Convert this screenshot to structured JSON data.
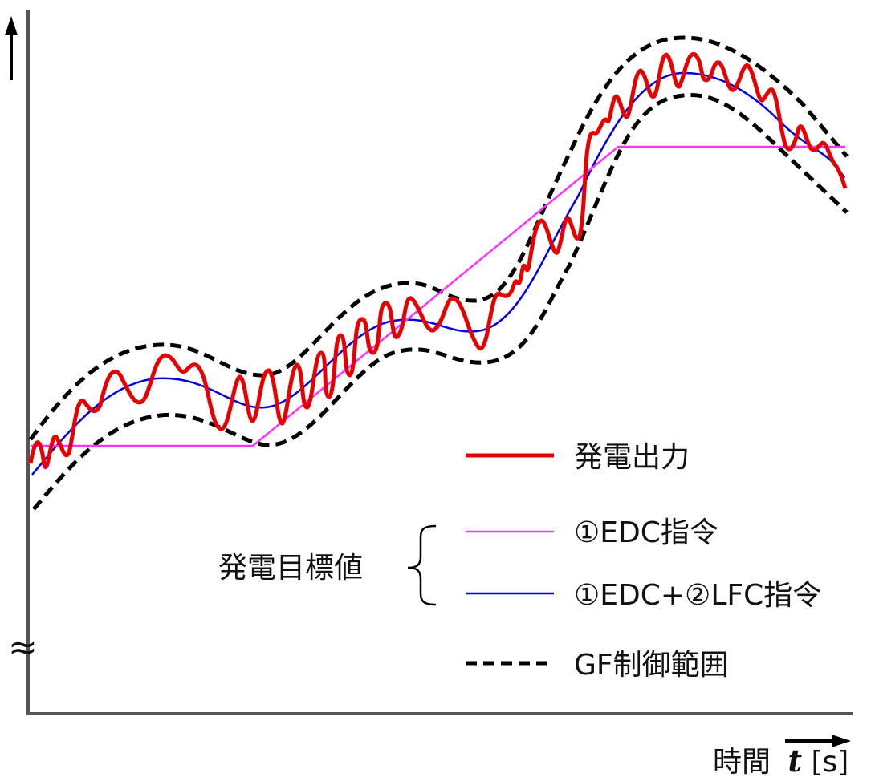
{
  "colors": {
    "output": "#e60000",
    "edc": "#ff33ff",
    "edc_lfc": "#0000dd",
    "gf_band": "#000000",
    "axis": "#555555",
    "text": "#111111"
  },
  "axes": {
    "x_label_text": "時間",
    "x_label_var": "t",
    "x_label_unit": "[s]",
    "y_arrow": "up-arrow-icon",
    "axis_break": "≈"
  },
  "legend": {
    "group_label": "発電目標値",
    "items": [
      {
        "key": "output",
        "label": "発電出力",
        "style": "solid-thick"
      },
      {
        "key": "edc",
        "label": "①EDC指令",
        "style": "solid-thin"
      },
      {
        "key": "edc_lfc",
        "label": "①EDC+②LFC指令",
        "style": "solid-thin"
      },
      {
        "key": "gf_band",
        "label": "GF制御範囲",
        "style": "dashed"
      }
    ]
  }
}
